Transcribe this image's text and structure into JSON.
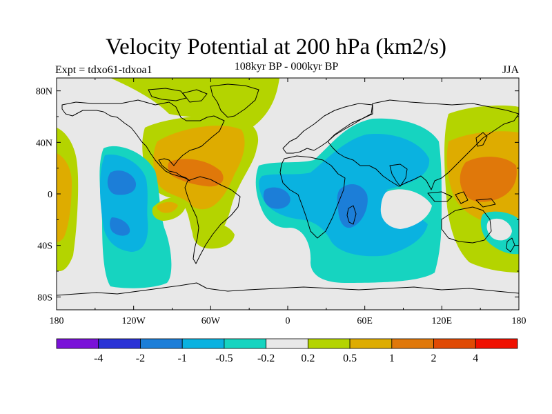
{
  "title": "Velocity Potential at 200 hPa (km2/s)",
  "subtitle": "108kyr BP - 000kyr BP",
  "experiment_label": "Expt = tdxo61-tdxoa1",
  "season_label": "JJA",
  "colors": {
    "background": "#e8e8e8",
    "coast": "#000000",
    "levels": [
      "#7a12d8",
      "#2a32d6",
      "#1c7ed8",
      "#0ab2e0",
      "#16d4c0",
      "#e8e8e8",
      "#b4d400",
      "#deac00",
      "#e0780a",
      "#e04a04",
      "#f01000"
    ]
  },
  "chart_data": {
    "type": "contour-map",
    "projection": "cylindrical-equidistant",
    "x_ticks": [
      "180",
      "120W",
      "60W",
      "0",
      "60E",
      "120E",
      "180"
    ],
    "y_ticks": [
      "80N",
      "40N",
      "0",
      "40S",
      "80S"
    ],
    "lon_range": [
      -180,
      180
    ],
    "lat_range": [
      -90,
      90
    ],
    "colorbar_labels": [
      "-4",
      "-2",
      "-1",
      "-0.5",
      "-0.2",
      "0.2",
      "0.5",
      "1",
      "2",
      "4"
    ]
  }
}
